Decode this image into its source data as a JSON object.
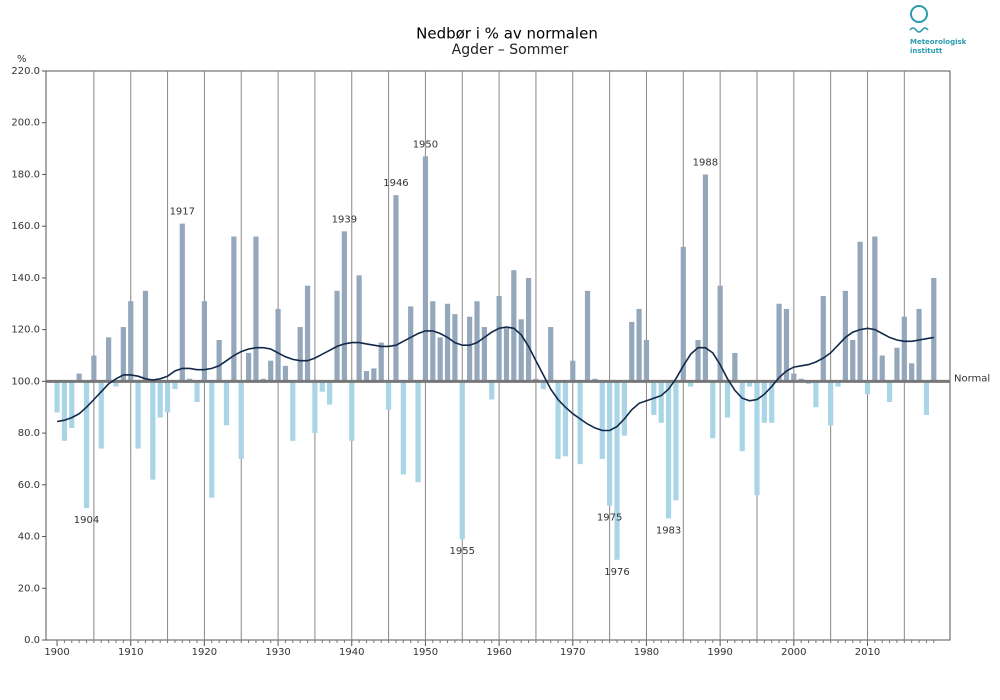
{
  "chart_data": {
    "type": "bar",
    "title": "Nedbør i % av normalen",
    "subtitle": "Agder – Sommer",
    "ylabel": "%",
    "logo": [
      "Meteorologisk",
      "institutt"
    ],
    "baseline": 100,
    "baseline_label": "Normal",
    "above_color": "#95a8bb",
    "below_color": "#a9d5e6",
    "x": [
      1900,
      1901,
      1902,
      1903,
      1904,
      1905,
      1906,
      1907,
      1908,
      1909,
      1910,
      1911,
      1912,
      1913,
      1914,
      1915,
      1916,
      1917,
      1918,
      1919,
      1920,
      1921,
      1922,
      1923,
      1924,
      1925,
      1926,
      1927,
      1928,
      1929,
      1930,
      1931,
      1932,
      1933,
      1934,
      1935,
      1936,
      1937,
      1938,
      1939,
      1940,
      1941,
      1942,
      1943,
      1944,
      1945,
      1946,
      1947,
      1948,
      1949,
      1950,
      1951,
      1952,
      1953,
      1954,
      1955,
      1956,
      1957,
      1958,
      1959,
      1960,
      1961,
      1962,
      1963,
      1964,
      1965,
      1966,
      1967,
      1968,
      1969,
      1970,
      1971,
      1972,
      1973,
      1974,
      1975,
      1976,
      1977,
      1978,
      1979,
      1980,
      1981,
      1982,
      1983,
      1984,
      1985,
      1986,
      1987,
      1988,
      1989,
      1990,
      1991,
      1992,
      1993,
      1994,
      1995,
      1996,
      1997,
      1998,
      1999,
      2000,
      2001,
      2002,
      2003,
      2004,
      2005,
      2006,
      2007,
      2008,
      2009,
      2010,
      2011,
      2012,
      2013,
      2014,
      2015,
      2016,
      2017,
      2018,
      2019
    ],
    "values": [
      88,
      77,
      82,
      103,
      51,
      110,
      74,
      117,
      98,
      121,
      131,
      74,
      135,
      62,
      86,
      88,
      97,
      161,
      101,
      92,
      131,
      55,
      116,
      83,
      156,
      70,
      111,
      156,
      101,
      108,
      128,
      106,
      77,
      121,
      137,
      80,
      96,
      91,
      135,
      158,
      77,
      141,
      104,
      105,
      115,
      89,
      172,
      64,
      129,
      61,
      187,
      131,
      117,
      130,
      126,
      39,
      125,
      131,
      121,
      93,
      133,
      121,
      143,
      124,
      140,
      101,
      97,
      121,
      70,
      71,
      108,
      68,
      135,
      101,
      70,
      52,
      31,
      79,
      123,
      128,
      116,
      87,
      84,
      47,
      54,
      152,
      98,
      116,
      180,
      78,
      137,
      86,
      111,
      73,
      98,
      56,
      84,
      84,
      130,
      128,
      103,
      101,
      99,
      90,
      133,
      83,
      98,
      135,
      116,
      154,
      95,
      156,
      110,
      92,
      113,
      125,
      107,
      128,
      87,
      140
    ],
    "trend": {
      "color": "#13294a",
      "values": [
        84.5,
        85,
        86,
        87.5,
        90,
        93,
        96,
        99,
        101,
        102.5,
        102.5,
        102,
        101,
        100.5,
        101,
        102,
        104,
        105,
        105,
        104.5,
        104.5,
        105,
        106,
        108,
        110,
        111.5,
        112.5,
        113,
        113,
        112.5,
        111,
        109.5,
        108.5,
        108,
        108,
        109,
        110.5,
        112,
        113.5,
        114.5,
        115,
        115,
        114.5,
        114,
        113.5,
        113.5,
        114,
        115.5,
        117,
        118.5,
        119.5,
        119.5,
        118.5,
        117,
        115,
        114,
        114,
        115,
        117,
        119,
        120.5,
        121,
        120.5,
        118,
        113.5,
        108,
        102.5,
        97,
        93,
        90,
        87.5,
        85.5,
        83.5,
        82,
        81,
        81,
        82.5,
        85.5,
        89,
        91.5,
        92.5,
        93.5,
        94.5,
        97,
        101,
        106,
        110.5,
        113,
        113,
        111,
        106.5,
        101,
        96.5,
        93.5,
        92.5,
        93,
        95,
        98,
        101.5,
        104,
        105.5,
        106,
        106.5,
        107.5,
        109,
        111,
        114,
        117,
        119,
        120,
        120.5,
        120,
        118.5,
        117,
        116,
        115.5,
        115.5,
        116,
        116.5,
        117
      ]
    },
    "annotations": [
      "1904",
      "1917",
      "1939",
      "1946",
      "1950",
      "1955",
      "1975",
      "1976",
      "1983",
      "1988"
    ],
    "xlim": [
      1898.5,
      2021.2
    ],
    "xticks": [
      1900,
      1910,
      1920,
      1930,
      1940,
      1950,
      1960,
      1970,
      1980,
      1990,
      2000,
      2010
    ],
    "grid_x": [
      1905,
      1910,
      1915,
      1920,
      1925,
      1930,
      1935,
      1940,
      1945,
      1950,
      1955,
      1960,
      1965,
      1970,
      1975,
      1980,
      1985,
      1990,
      1995,
      2000,
      2005,
      2010,
      2015
    ],
    "ylim": [
      0,
      220
    ],
    "yticks": [
      {
        "value": 0,
        "label": "0.0"
      },
      {
        "value": 20,
        "label": "20.0"
      },
      {
        "value": 40,
        "label": "40.0"
      },
      {
        "value": 60,
        "label": "60.0"
      },
      {
        "value": 80,
        "label": "80.0"
      },
      {
        "value": 100,
        "label": "100.0"
      },
      {
        "value": 120,
        "label": "120.0"
      },
      {
        "value": 140,
        "label": "140.0"
      },
      {
        "value": 160,
        "label": "160.0"
      },
      {
        "value": 180,
        "label": "180.0"
      },
      {
        "value": 200,
        "label": "200.0"
      },
      {
        "value": 220,
        "label": "220.0"
      }
    ]
  }
}
